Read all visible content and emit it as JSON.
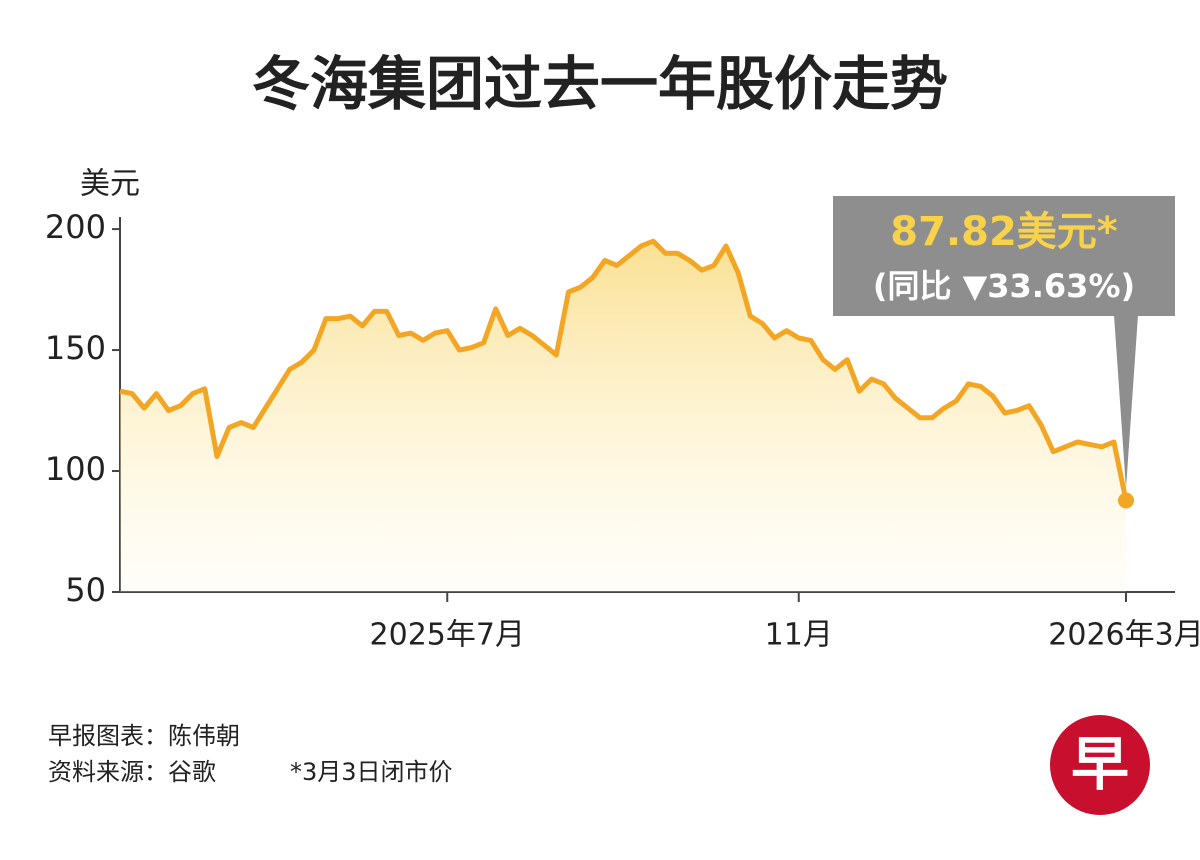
{
  "chart_data": {
    "type": "line",
    "title": "冬海集团过去一年股价走势",
    "y_label": "美元",
    "categories": [
      null,
      null,
      null,
      null,
      null,
      null,
      null,
      null,
      null,
      null,
      null,
      null,
      null,
      null,
      null,
      null,
      null,
      null,
      null,
      null,
      null,
      null,
      null,
      null,
      null,
      null,
      null,
      "2025年7月",
      null,
      null,
      null,
      null,
      null,
      null,
      null,
      null,
      null,
      null,
      null,
      null,
      null,
      null,
      null,
      null,
      null,
      null,
      null,
      null,
      null,
      null,
      null,
      null,
      null,
      null,
      null,
      null,
      "11月",
      null,
      null,
      null,
      null,
      null,
      null,
      null,
      null,
      null,
      null,
      null,
      null,
      null,
      null,
      null,
      null,
      null,
      null,
      null,
      null,
      null,
      null,
      null,
      null,
      null,
      null,
      "2026年3月"
    ],
    "values": [
      133,
      132,
      126,
      132,
      125,
      127,
      132,
      134,
      106,
      118,
      120,
      118,
      126,
      134,
      142,
      145,
      150,
      163,
      163,
      164,
      160,
      166,
      166,
      156,
      157,
      154,
      157,
      158,
      150,
      151,
      153,
      167,
      156,
      159,
      156,
      152,
      148,
      174,
      176,
      180,
      187,
      185,
      189,
      193,
      195,
      190,
      190,
      187,
      183,
      185,
      193,
      182,
      164,
      161,
      155,
      158,
      155,
      154,
      146,
      142,
      146,
      133,
      138,
      136,
      130,
      126,
      122,
      122,
      126,
      129,
      136,
      135,
      131,
      124,
      125,
      127,
      119,
      108,
      110,
      112,
      111,
      110,
      112,
      87.82
    ],
    "color": "#f2a623",
    "ylim": [
      50,
      205
    ],
    "yticks": [
      50,
      100,
      150,
      200
    ],
    "annotation": {
      "price": "87.82美元*",
      "change": "(同比 ▼33.63%)"
    },
    "credit": "早报图表：陈伟朝",
    "source": "资料来源：谷歌",
    "note": "*3月3日闭市价",
    "logo": "早"
  }
}
